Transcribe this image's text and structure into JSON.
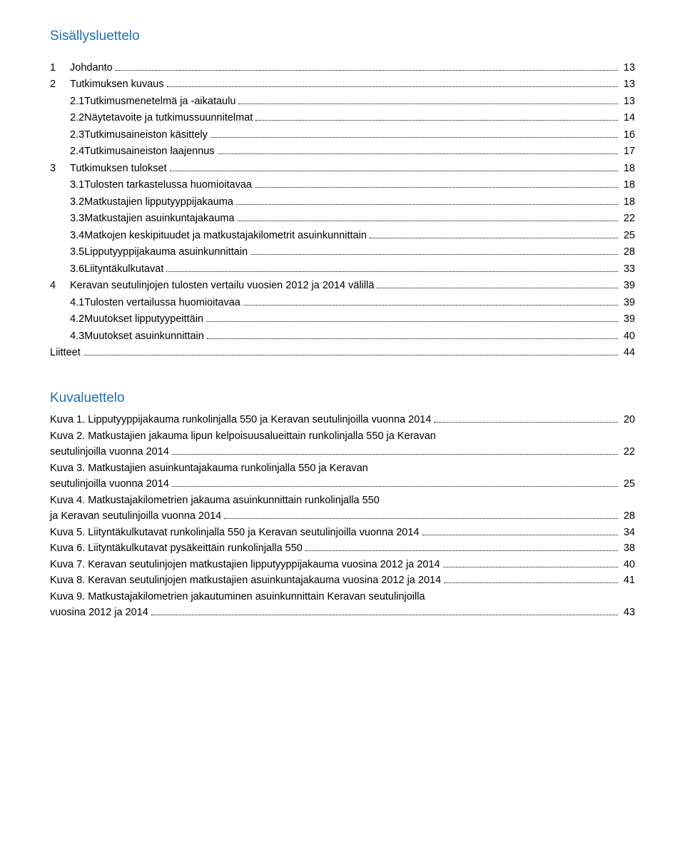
{
  "colors": {
    "heading": "#1f6fb5",
    "text": "#000000",
    "background": "#ffffff"
  },
  "typography": {
    "heading_fontsize": 19,
    "body_fontsize": 14.5,
    "font_family": "Arial"
  },
  "toc_title": "Sisällysluettelo",
  "toc": [
    {
      "level": 1,
      "num": "1",
      "label": "Johdanto",
      "page": "13"
    },
    {
      "level": 1,
      "num": "2",
      "label": "Tutkimuksen kuvaus",
      "page": "13"
    },
    {
      "level": 2,
      "num": "2.1",
      "label": "Tutkimusmenetelmä ja -aikataulu",
      "page": "13"
    },
    {
      "level": 2,
      "num": "2.2",
      "label": "Näytetavoite ja tutkimussuunnitelmat",
      "page": "14"
    },
    {
      "level": 2,
      "num": "2.3",
      "label": "Tutkimusaineiston käsittely",
      "page": "16"
    },
    {
      "level": 2,
      "num": "2.4",
      "label": "Tutkimusaineiston laajennus",
      "page": "17"
    },
    {
      "level": 1,
      "num": "3",
      "label": "Tutkimuksen tulokset",
      "page": "18"
    },
    {
      "level": 2,
      "num": "3.1",
      "label": "Tulosten tarkastelussa huomioitavaa",
      "page": "18"
    },
    {
      "level": 2,
      "num": "3.2",
      "label": "Matkustajien lipputyyppijakauma",
      "page": "18"
    },
    {
      "level": 2,
      "num": "3.3",
      "label": "Matkustajien asuinkuntajakauma",
      "page": "22"
    },
    {
      "level": 2,
      "num": "3.4",
      "label": "Matkojen keskipituudet ja matkustajakilometrit asuinkunnittain",
      "page": "25"
    },
    {
      "level": 2,
      "num": "3.5",
      "label": "Lipputyyppijakauma asuinkunnittain",
      "page": "28"
    },
    {
      "level": 2,
      "num": "3.6",
      "label": "Liityntäkulkutavat",
      "page": "33"
    },
    {
      "level": 1,
      "num": "4",
      "label": "Keravan seutulinjojen tulosten vertailu vuosien 2012 ja 2014 välillä",
      "page": "39"
    },
    {
      "level": 2,
      "num": "4.1",
      "label": "Tulosten vertailussa huomioitavaa",
      "page": "39"
    },
    {
      "level": 2,
      "num": "4.2",
      "label": "Muutokset lipputyypeittäin",
      "page": "39"
    },
    {
      "level": 2,
      "num": "4.3",
      "label": "Muutokset asuinkunnittain",
      "page": "40"
    }
  ],
  "liitteet": {
    "label": "Liitteet",
    "page": "44"
  },
  "kuva_title": "Kuvaluettelo",
  "kuvat": [
    {
      "lines": [
        "Kuva 1. Lipputyyppijakauma runkolinjalla 550 ja Keravan seutulinjoilla vuonna 2014"
      ],
      "page": "20"
    },
    {
      "lines": [
        "Kuva 2. Matkustajien jakauma lipun kelpoisuusalueittain runkolinjalla 550 ja Keravan",
        "seutulinjoilla vuonna 2014"
      ],
      "page": "22"
    },
    {
      "lines": [
        "Kuva 3. Matkustajien asuinkuntajakauma runkolinjalla 550 ja Keravan",
        "seutulinjoilla vuonna 2014"
      ],
      "page": "25"
    },
    {
      "lines": [
        "Kuva 4. Matkustajakilometrien jakauma asuinkunnittain runkolinjalla 550",
        "ja Keravan seutulinjoilla vuonna 2014"
      ],
      "page": "28"
    },
    {
      "lines": [
        "Kuva 5. Liityntäkulkutavat runkolinjalla 550 ja Keravan seutulinjoilla vuonna 2014"
      ],
      "page": "34"
    },
    {
      "lines": [
        "Kuva 6. Liityntäkulkutavat pysäkeittäin runkolinjalla 550"
      ],
      "page": "38"
    },
    {
      "lines": [
        "Kuva 7. Keravan seutulinjojen matkustajien lipputyyppijakauma vuosina 2012 ja 2014"
      ],
      "page": "40"
    },
    {
      "lines": [
        "Kuva 8. Keravan seutulinjojen matkustajien asuinkuntajakauma vuosina 2012 ja 2014"
      ],
      "page": "41"
    },
    {
      "lines": [
        "Kuva 9. Matkustajakilometrien jakautuminen asuinkunnittain Keravan seutulinjoilla",
        "vuosina 2012 ja 2014"
      ],
      "page": "43"
    }
  ]
}
